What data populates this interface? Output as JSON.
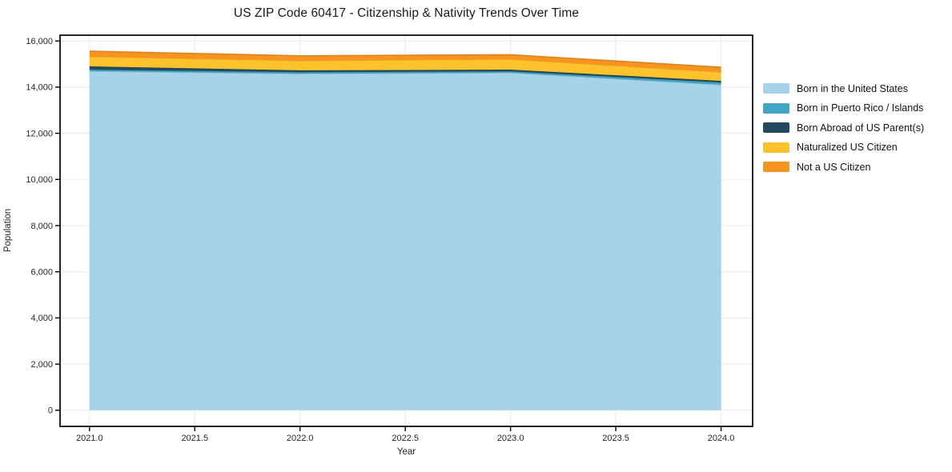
{
  "chart_data": {
    "type": "area",
    "stacked": true,
    "title": "US ZIP Code 60417 - Citizenship & Nativity Trends Over Time",
    "xlabel": "Year",
    "ylabel": "Population",
    "x": [
      2021,
      2022,
      2023,
      2024
    ],
    "series": [
      {
        "name": "Born in the United States",
        "color": "#a6d3ea",
        "values": [
          14690,
          14580,
          14620,
          14100
        ]
      },
      {
        "name": "Born in Puerto Rico / Islands",
        "color": "#41a5c4",
        "values": [
          70,
          65,
          60,
          100
        ]
      },
      {
        "name": "Born Abroad of US Parent(s)",
        "color": "#234a5e",
        "values": [
          140,
          85,
          80,
          70
        ]
      },
      {
        "name": "Naturalized US Citizen",
        "color": "#fdc32d",
        "values": [
          420,
          415,
          445,
          380
        ]
      },
      {
        "name": "Not a US Citizen",
        "color": "#f7931e",
        "values": [
          240,
          210,
          200,
          210
        ]
      }
    ],
    "totals_by_year": [
      15560,
      15355,
      15405,
      14860
    ],
    "xticks": [
      2021.0,
      2021.5,
      2022.0,
      2022.5,
      2023.0,
      2023.5,
      2024.0
    ],
    "xtick_labels": [
      "2021.0",
      "2021.5",
      "2022.0",
      "2022.5",
      "2023.0",
      "2023.5",
      "2024.0"
    ],
    "yticks": [
      0,
      2000,
      4000,
      6000,
      8000,
      10000,
      12000,
      14000,
      16000
    ],
    "ytick_labels": [
      "0",
      "2,000",
      "4,000",
      "6,000",
      "8,000",
      "10,000",
      "12,000",
      "14,000",
      "16,000"
    ],
    "xlim": [
      2020.86,
      2024.15
    ],
    "ylim": [
      -700,
      16250
    ],
    "grid": true,
    "grid_color": "#eaeaea",
    "frame_color": "#000000",
    "background_color": "#ffffff",
    "legend_position": "right-outside"
  }
}
